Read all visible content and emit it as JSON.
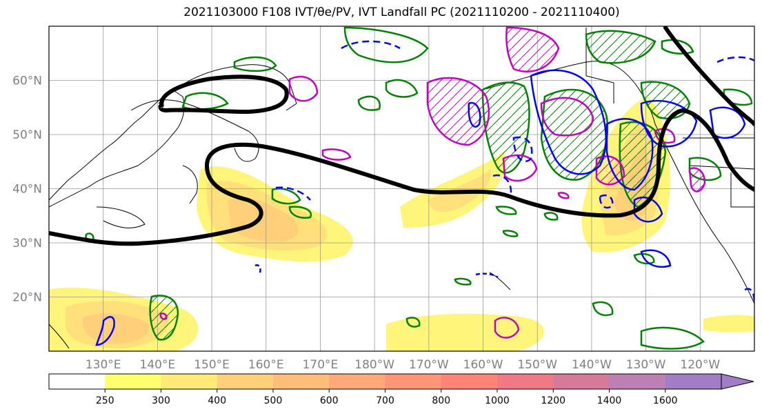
{
  "title": "2021103000 F108 IVT/θe/PV, IVT Landfall PC (2021110200 - 2021110400)",
  "map": {
    "lat_labels": [
      "60°N",
      "50°N",
      "40°N",
      "30°N",
      "20°N"
    ],
    "lon_labels": [
      "130°E",
      "140°E",
      "150°E",
      "160°E",
      "170°E",
      "180°W",
      "170°W",
      "160°W",
      "150°W",
      "140°W",
      "130°W",
      "120°W"
    ],
    "extent": {
      "lon_min": 120,
      "lon_max": 250,
      "lat_min": 10,
      "lat_max": 70
    },
    "colors": {
      "theta_e_contour": "#008000",
      "pv_contour": "#c000c0",
      "blue_contour": "#0000ff",
      "jet_axis": "#000000",
      "coast": "#000000",
      "grid": "#999999",
      "tick_label": "#808080"
    }
  },
  "colorbar": {
    "ticks": [
      "250",
      "300",
      "400",
      "500",
      "600",
      "700",
      "800",
      "1000",
      "1200",
      "1400",
      "1600"
    ],
    "colors": [
      "#ffffff",
      "#ffff70",
      "#ffea77",
      "#ffd07a",
      "#ffbd7a",
      "#ffa87a",
      "#ff9577",
      "#ff8377",
      "#ef7a86",
      "#d77a99",
      "#bd80b5",
      "#a07dc5"
    ],
    "extend": "max"
  }
}
